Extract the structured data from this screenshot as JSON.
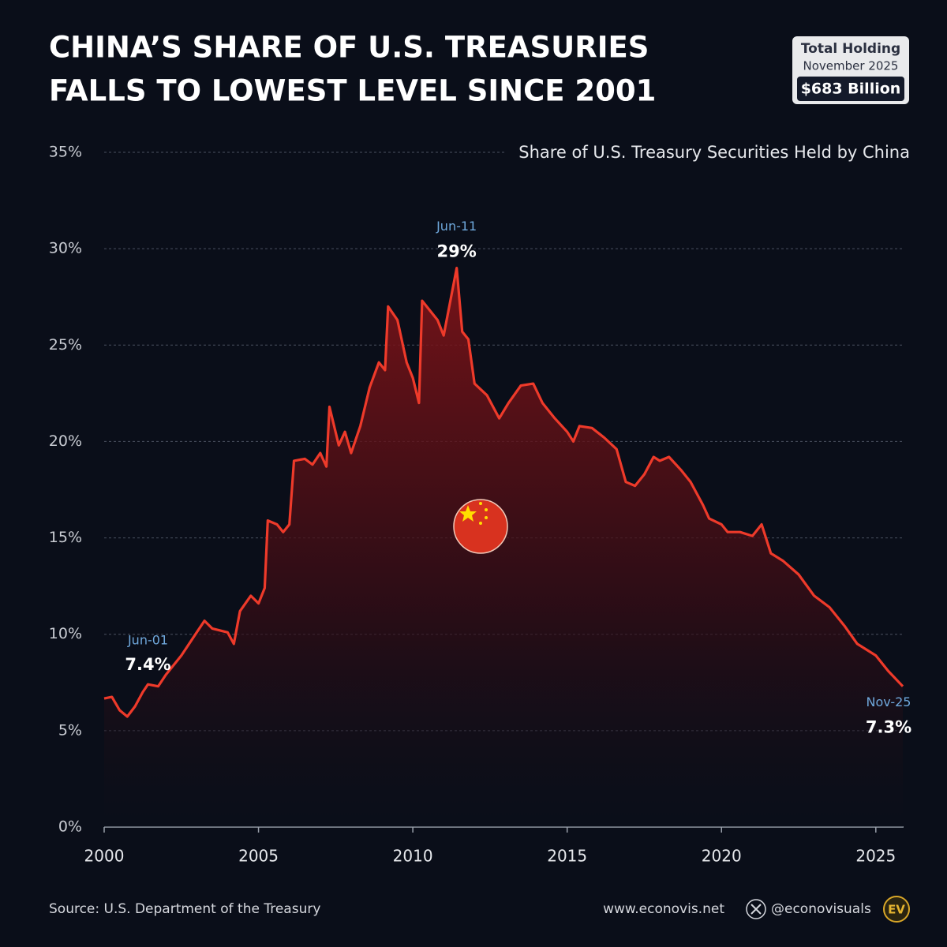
{
  "header": {
    "title": [
      "CHINA’S SHARE OF U.S. TREASURIES",
      "FALLS TO LOWEST LEVEL SINCE 2001"
    ],
    "badge": {
      "label": "Total Holding",
      "period": "November 2025",
      "amount": "$683 Billion"
    }
  },
  "chart_data": {
    "type": "line",
    "subtitle": "Share of U.S. Treasury Securities Held by China",
    "color": "#ee3a2a",
    "x": [
      2000.0,
      2000.25,
      2000.5,
      2000.75,
      2001.0,
      2001.25,
      2001.42,
      2001.75,
      2002.0,
      2002.5,
      2003.0,
      2003.25,
      2003.5,
      2004.0,
      2004.2,
      2004.4,
      2004.75,
      2005.0,
      2005.2,
      2005.3,
      2005.6,
      2005.8,
      2006.0,
      2006.15,
      2006.5,
      2006.75,
      2007.0,
      2007.2,
      2007.3,
      2007.6,
      2007.8,
      2008.0,
      2008.3,
      2008.6,
      2008.9,
      2009.1,
      2009.2,
      2009.5,
      2009.8,
      2010.0,
      2010.2,
      2010.3,
      2010.6,
      2010.8,
      2011.0,
      2011.42,
      2011.6,
      2011.8,
      2012.0,
      2012.4,
      2012.8,
      2013.1,
      2013.5,
      2013.9,
      2014.2,
      2014.6,
      2015.0,
      2015.2,
      2015.4,
      2015.8,
      2016.2,
      2016.6,
      2016.9,
      2017.2,
      2017.5,
      2017.8,
      2018.0,
      2018.3,
      2018.7,
      2019.0,
      2019.4,
      2019.6,
      2020.0,
      2020.2,
      2020.6,
      2021.0,
      2021.3,
      2021.6,
      2022.0,
      2022.5,
      2023.0,
      2023.5,
      2024.0,
      2024.4,
      2025.0,
      2025.4,
      2025.875
    ],
    "values": [
      6.67,
      6.75,
      6.06,
      5.73,
      6.26,
      7.0,
      7.4,
      7.3,
      7.9,
      8.9,
      10.1,
      10.7,
      10.3,
      10.1,
      9.5,
      11.2,
      12.0,
      11.6,
      12.4,
      15.9,
      15.7,
      15.3,
      15.7,
      19.0,
      19.1,
      18.8,
      19.4,
      18.7,
      21.8,
      19.8,
      20.5,
      19.4,
      20.8,
      22.8,
      24.1,
      23.7,
      27.0,
      26.3,
      24.1,
      23.3,
      22.0,
      27.3,
      26.7,
      26.3,
      25.5,
      29.0,
      25.7,
      25.3,
      23.0,
      22.4,
      21.2,
      22.0,
      22.9,
      23.0,
      22.0,
      21.2,
      20.5,
      20.0,
      20.8,
      20.7,
      20.2,
      19.6,
      17.9,
      17.7,
      18.3,
      19.2,
      19.0,
      19.2,
      18.5,
      17.9,
      16.7,
      16.0,
      15.7,
      15.3,
      15.3,
      15.1,
      15.7,
      14.2,
      13.8,
      13.1,
      12.0,
      11.4,
      10.4,
      9.5,
      8.9,
      8.1,
      7.3
    ],
    "xlim": [
      2000,
      2025.9
    ],
    "xticks": [
      2000,
      2005,
      2010,
      2015,
      2020,
      2025
    ],
    "ylim": [
      0,
      35
    ],
    "yticks": [
      {
        "value": 0,
        "label": "0%"
      },
      {
        "value": 5,
        "label": "5%"
      },
      {
        "value": 10,
        "label": "10%"
      },
      {
        "value": 15,
        "label": "15%"
      },
      {
        "value": 20,
        "label": "20%"
      },
      {
        "value": 25,
        "label": "25%"
      },
      {
        "value": 30,
        "label": "30%"
      },
      {
        "value": 35,
        "label": "35%"
      }
    ],
    "grid": true,
    "annotations": [
      {
        "date": "Jun-01",
        "label": "7.4%",
        "x": 2001.42,
        "value": 7.4
      },
      {
        "date": "Jun-11",
        "label": "29%",
        "x": 2011.42,
        "value": 29.0
      },
      {
        "date": "Nov-25",
        "label": "7.3%",
        "x": 2025.875,
        "value": 7.3
      }
    ]
  },
  "footer": {
    "source": "Source: U.S. Department of the Treasury",
    "website": "www.econovis.net",
    "handle": "@econovisuals",
    "logo": "EV"
  }
}
